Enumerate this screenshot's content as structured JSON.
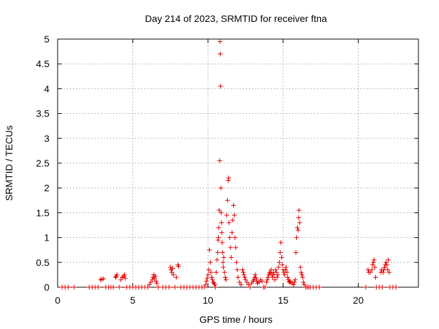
{
  "chart_data": {
    "type": "scatter",
    "title": "Day 214 of 2023, SRMTID for receiver ftna",
    "xlabel": "GPS time / hours",
    "ylabel": "SRMTID / TECUs",
    "xlim": [
      0,
      24
    ],
    "ylim": [
      0,
      5
    ],
    "xticks": [
      0,
      5,
      10,
      15,
      20
    ],
    "xtick_labels": [
      "0",
      "5",
      "10",
      "15",
      "20"
    ],
    "yticks": [
      0,
      0.5,
      1,
      1.5,
      2,
      2.5,
      3,
      3.5,
      4,
      4.5,
      5
    ],
    "ytick_labels": [
      "0",
      "0.5",
      "1",
      "1.5",
      "2",
      "2.5",
      "3",
      "3.5",
      "4",
      "4.5",
      "5"
    ],
    "grid": true,
    "marker": "+",
    "marker_color": "#e00000",
    "series": [
      {
        "name": "SRMTID",
        "points": [
          [
            0.3,
            0
          ],
          [
            0.5,
            0
          ],
          [
            0.7,
            0
          ],
          [
            1.1,
            0
          ],
          [
            2.1,
            0
          ],
          [
            2.3,
            0
          ],
          [
            2.5,
            0
          ],
          [
            2.7,
            0
          ],
          [
            2.85,
            0.15
          ],
          [
            2.95,
            0.16
          ],
          [
            3.05,
            0.17
          ],
          [
            3.2,
            0
          ],
          [
            3.4,
            0
          ],
          [
            3.55,
            0
          ],
          [
            3.7,
            0
          ],
          [
            3.85,
            0.2
          ],
          [
            3.9,
            0.22
          ],
          [
            3.95,
            0.25
          ],
          [
            4.1,
            0
          ],
          [
            4.2,
            0.15
          ],
          [
            4.3,
            0.2
          ],
          [
            4.4,
            0.22
          ],
          [
            4.45,
            0.25
          ],
          [
            4.5,
            0.18
          ],
          [
            4.6,
            0
          ],
          [
            4.8,
            0
          ],
          [
            5.0,
            0
          ],
          [
            5.2,
            0
          ],
          [
            5.4,
            0
          ],
          [
            5.6,
            0
          ],
          [
            5.8,
            0
          ],
          [
            6.0,
            0
          ],
          [
            6.1,
            0.05
          ],
          [
            6.2,
            0.1
          ],
          [
            6.3,
            0.15
          ],
          [
            6.35,
            0.2
          ],
          [
            6.4,
            0.25
          ],
          [
            6.45,
            0.18
          ],
          [
            6.5,
            0.22
          ],
          [
            6.55,
            0.12
          ],
          [
            6.6,
            0.08
          ],
          [
            6.7,
            0
          ],
          [
            7.0,
            0
          ],
          [
            7.2,
            0
          ],
          [
            7.4,
            0
          ],
          [
            7.5,
            0.4
          ],
          [
            7.55,
            0.35
          ],
          [
            7.6,
            0.3
          ],
          [
            7.65,
            0.38
          ],
          [
            7.7,
            0.25
          ],
          [
            7.8,
            0
          ],
          [
            7.9,
            0.2
          ],
          [
            8.0,
            0.45
          ],
          [
            8.05,
            0.42
          ],
          [
            8.2,
            0
          ],
          [
            8.4,
            0
          ],
          [
            8.6,
            0
          ],
          [
            8.8,
            0
          ],
          [
            9.0,
            0
          ],
          [
            9.2,
            0
          ],
          [
            9.4,
            0
          ],
          [
            9.6,
            0
          ],
          [
            9.75,
            0
          ],
          [
            9.85,
            0.05
          ],
          [
            9.9,
            0.12
          ],
          [
            9.95,
            0.18
          ],
          [
            10.0,
            0.25
          ],
          [
            10.05,
            0.35
          ],
          [
            10.1,
            0.75
          ],
          [
            10.15,
            0.5
          ],
          [
            10.2,
            0.3
          ],
          [
            10.25,
            0.2
          ],
          [
            10.3,
            0.15
          ],
          [
            10.35,
            0.1
          ],
          [
            10.4,
            0.08
          ],
          [
            10.45,
            0.05
          ],
          [
            10.5,
            0
          ],
          [
            10.55,
            0.3
          ],
          [
            10.6,
            0.55
          ],
          [
            10.65,
            0.7
          ],
          [
            10.68,
            0.95
          ],
          [
            10.7,
            1.0
          ],
          [
            10.72,
            1.2
          ],
          [
            10.75,
            1.55
          ],
          [
            10.78,
            2.55
          ],
          [
            10.8,
            4.95
          ],
          [
            10.82,
            4.7
          ],
          [
            10.84,
            4.05
          ],
          [
            10.86,
            2.0
          ],
          [
            10.88,
            1.5
          ],
          [
            10.9,
            1.3
          ],
          [
            10.92,
            1.1
          ],
          [
            10.95,
            0.9
          ],
          [
            10.98,
            0.7
          ],
          [
            11.0,
            0.5
          ],
          [
            11.02,
            0.4
          ],
          [
            11.05,
            0.6
          ],
          [
            11.1,
            0.3
          ],
          [
            11.15,
            0.2
          ],
          [
            11.2,
            0.15
          ],
          [
            11.25,
            1.45
          ],
          [
            11.3,
            1.75
          ],
          [
            11.35,
            2.15
          ],
          [
            11.38,
            2.2
          ],
          [
            11.4,
            1.3
          ],
          [
            11.45,
            1.0
          ],
          [
            11.5,
            0.8
          ],
          [
            11.55,
            0.6
          ],
          [
            11.6,
            1.1
          ],
          [
            11.65,
            1.35
          ],
          [
            11.7,
            1.65
          ],
          [
            11.75,
            1.45
          ],
          [
            11.8,
            1.0
          ],
          [
            11.85,
            0.8
          ],
          [
            11.9,
            0.5
          ],
          [
            11.95,
            0.35
          ],
          [
            12.0,
            0.2
          ],
          [
            12.1,
            0.1
          ],
          [
            12.2,
            0.05
          ],
          [
            12.3,
            0.35
          ],
          [
            12.35,
            0.3
          ],
          [
            12.4,
            0.25
          ],
          [
            12.45,
            0.2
          ],
          [
            12.5,
            0.15
          ],
          [
            12.6,
            0.1
          ],
          [
            12.7,
            0.05
          ],
          [
            12.8,
            0
          ],
          [
            12.9,
            0.08
          ],
          [
            13.0,
            0.12
          ],
          [
            13.05,
            0.15
          ],
          [
            13.1,
            0.2
          ],
          [
            13.15,
            0.25
          ],
          [
            13.2,
            0.18
          ],
          [
            13.25,
            0.12
          ],
          [
            13.3,
            0.08
          ],
          [
            13.4,
            0.1
          ],
          [
            13.5,
            0.15
          ],
          [
            13.6,
            0.12
          ],
          [
            13.7,
            0
          ],
          [
            13.8,
            0
          ],
          [
            13.9,
            0.1
          ],
          [
            13.95,
            0.15
          ],
          [
            14.0,
            0.2
          ],
          [
            14.05,
            0.25
          ],
          [
            14.1,
            0.3
          ],
          [
            14.15,
            0.28
          ],
          [
            14.2,
            0.35
          ],
          [
            14.25,
            0.25
          ],
          [
            14.3,
            0.2
          ],
          [
            14.35,
            0.3
          ],
          [
            14.4,
            0.25
          ],
          [
            14.45,
            0.15
          ],
          [
            14.5,
            0.35
          ],
          [
            14.55,
            0.3
          ],
          [
            14.6,
            0.2
          ],
          [
            14.65,
            0.25
          ],
          [
            14.7,
            0.4
          ],
          [
            14.75,
            0.5
          ],
          [
            14.8,
            0.7
          ],
          [
            14.85,
            0.9
          ],
          [
            14.9,
            0.6
          ],
          [
            14.95,
            0.45
          ],
          [
            15.0,
            0.35
          ],
          [
            15.05,
            0.3
          ],
          [
            15.1,
            0.25
          ],
          [
            15.15,
            0.35
          ],
          [
            15.2,
            0.4
          ],
          [
            15.25,
            0.3
          ],
          [
            15.3,
            0.2
          ],
          [
            15.35,
            0.15
          ],
          [
            15.4,
            0.1
          ],
          [
            15.45,
            0.12
          ],
          [
            15.5,
            0.1
          ],
          [
            15.6,
            0.08
          ],
          [
            15.7,
            0.05
          ],
          [
            15.75,
            0.1
          ],
          [
            15.8,
            0.15
          ],
          [
            15.85,
            0.7
          ],
          [
            15.9,
            1.0
          ],
          [
            15.95,
            1.2
          ],
          [
            16.0,
            1.15
          ],
          [
            16.03,
            1.4
          ],
          [
            16.06,
            1.55
          ],
          [
            16.1,
            1.3
          ],
          [
            16.15,
            0.4
          ],
          [
            16.2,
            0.3
          ],
          [
            16.25,
            0.25
          ],
          [
            16.3,
            0.2
          ],
          [
            16.35,
            0.1
          ],
          [
            16.4,
            0.05
          ],
          [
            16.5,
            0
          ],
          [
            16.6,
            0
          ],
          [
            16.7,
            0
          ],
          [
            16.8,
            0
          ],
          [
            17.0,
            0
          ],
          [
            17.2,
            0
          ],
          [
            17.4,
            0
          ],
          [
            20.5,
            0
          ],
          [
            20.65,
            0.35
          ],
          [
            20.7,
            0.3
          ],
          [
            20.8,
            0.3
          ],
          [
            20.9,
            0.35
          ],
          [
            20.95,
            0.45
          ],
          [
            21.0,
            0.5
          ],
          [
            21.05,
            0.55
          ],
          [
            21.1,
            0.4
          ],
          [
            21.15,
            0.2
          ],
          [
            21.2,
            0
          ],
          [
            21.4,
            0
          ],
          [
            21.5,
            0.3
          ],
          [
            21.55,
            0.35
          ],
          [
            21.6,
            0
          ],
          [
            21.65,
            0.3
          ],
          [
            21.7,
            0.35
          ],
          [
            21.75,
            0.4
          ],
          [
            21.8,
            0.45
          ],
          [
            21.85,
            0.5
          ],
          [
            21.9,
            0.45
          ],
          [
            21.95,
            0.35
          ],
          [
            22.0,
            0.55
          ],
          [
            22.05,
            0.3
          ],
          [
            22.1,
            0
          ],
          [
            22.3,
            0
          ],
          [
            22.5,
            0
          ]
        ]
      }
    ]
  }
}
